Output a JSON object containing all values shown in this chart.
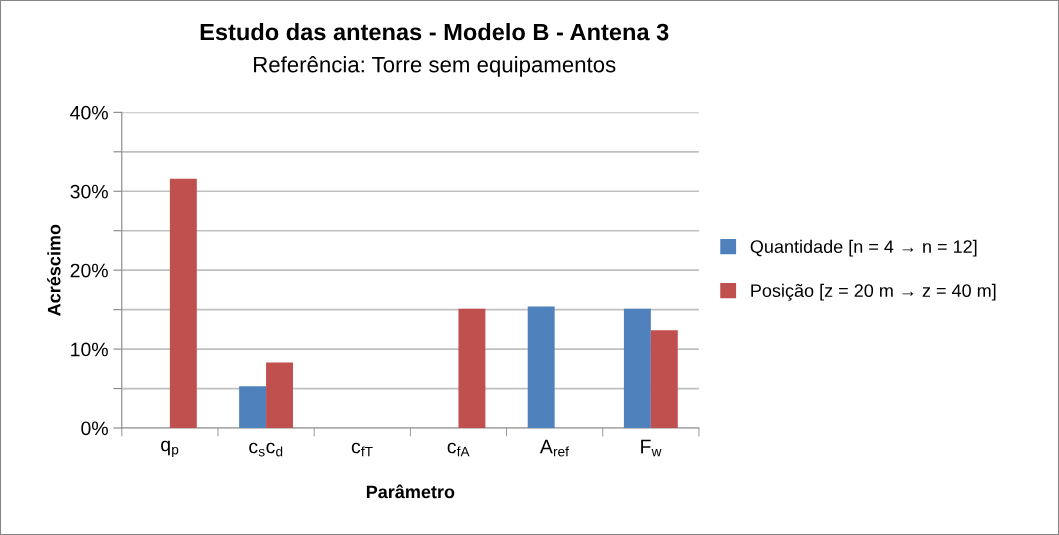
{
  "chart_data": {
    "type": "bar",
    "title": "Estudo das antenas - Modelo B - Antena 3",
    "subtitle": "Referência: Torre sem equipamentos",
    "xlabel": "Parâmetro",
    "ylabel": "Acréscimo",
    "categories": [
      "q$_{p}$",
      "c$_{s}$c$_{d}$",
      "c$_{fT}$",
      "c$_{fA}$",
      "A$_{ref}$",
      "F$_{w}$"
    ],
    "series": [
      {
        "name": "Quantidade [n = 4 → n = 12]",
        "color": "#4f81bd",
        "values": [
          0,
          5.3,
          0,
          0,
          15.4,
          15.1
        ]
      },
      {
        "name": "Posição [z = 20 m → z = 40 m]",
        "color": "#c0504d",
        "values": [
          31.6,
          8.3,
          0,
          15.1,
          0,
          12.4
        ]
      }
    ],
    "ylim": [
      0,
      40
    ],
    "yticks": [
      {
        "value": 0,
        "label": "0%"
      },
      {
        "value": 5,
        "label": null
      },
      {
        "value": 10,
        "label": "10%"
      },
      {
        "value": 15,
        "label": null
      },
      {
        "value": 20,
        "label": "20%"
      },
      {
        "value": 25,
        "label": null
      },
      {
        "value": 30,
        "label": "30%"
      },
      {
        "value": 35,
        "label": null
      },
      {
        "value": 40,
        "label": "40%"
      }
    ],
    "grid": "y",
    "legend": "right"
  }
}
